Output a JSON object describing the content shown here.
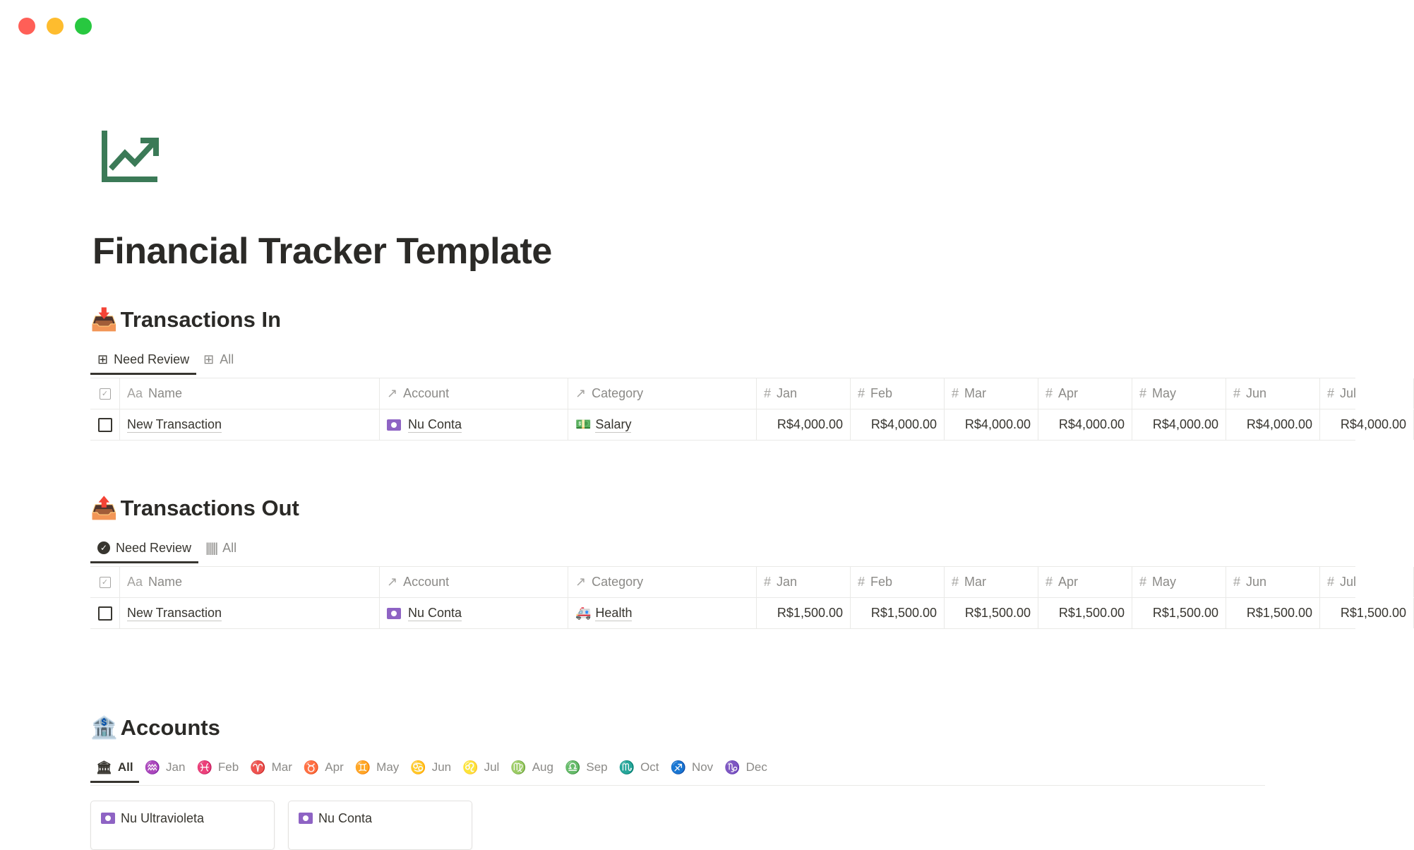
{
  "window": {
    "colors": {
      "close": "#ff5f57",
      "minimize": "#febc2e",
      "maximize": "#28c840"
    }
  },
  "page": {
    "icon": "trending-up-chart-icon",
    "icon_color": "#3b7a57",
    "title": "Financial Tracker Template"
  },
  "columns": {
    "name": "Name",
    "name_prefix": "Aa",
    "account": "Account",
    "category": "Category",
    "months": [
      "Jan",
      "Feb",
      "Mar",
      "Apr",
      "May",
      "Jun",
      "Jul"
    ]
  },
  "transactions_in": {
    "emoji": "📥",
    "title": "Transactions In",
    "tabs": [
      {
        "label": "Need Review",
        "icon": "table-icon"
      },
      {
        "label": "All",
        "icon": "table-icon"
      }
    ],
    "rows": [
      {
        "name": "New Transaction",
        "account": "Nu Conta",
        "category_emoji": "💵",
        "category": "Salary",
        "values": [
          "R$4,000.00",
          "R$4,000.00",
          "R$4,000.00",
          "R$4,000.00",
          "R$4,000.00",
          "R$4,000.00",
          "R$4,000.00"
        ]
      }
    ]
  },
  "transactions_out": {
    "emoji": "📤",
    "title": "Transactions Out",
    "tabs": [
      {
        "label": "Need Review",
        "icon": "check-circle-icon"
      },
      {
        "label": "All",
        "icon": "barcode-icon"
      }
    ],
    "rows": [
      {
        "name": "New Transaction",
        "account": "Nu Conta",
        "category_emoji": "🚑",
        "category": "Health",
        "values": [
          "R$1,500.00",
          "R$1,500.00",
          "R$1,500.00",
          "R$1,500.00",
          "R$1,500.00",
          "R$1,500.00",
          "R$1,500.00"
        ]
      }
    ]
  },
  "accounts": {
    "emoji": "🏦",
    "title": "Accounts",
    "tabs": [
      {
        "glyph": "🏛",
        "label": "All"
      },
      {
        "glyph": "♒",
        "label": "Jan"
      },
      {
        "glyph": "♓",
        "label": "Feb"
      },
      {
        "glyph": "♈",
        "label": "Mar"
      },
      {
        "glyph": "♉",
        "label": "Apr"
      },
      {
        "glyph": "♊",
        "label": "May"
      },
      {
        "glyph": "♋",
        "label": "Jun"
      },
      {
        "glyph": "♌",
        "label": "Jul"
      },
      {
        "glyph": "♍",
        "label": "Aug"
      },
      {
        "glyph": "♎",
        "label": "Sep"
      },
      {
        "glyph": "♏",
        "label": "Oct"
      },
      {
        "glyph": "♐",
        "label": "Nov"
      },
      {
        "glyph": "♑",
        "label": "Dec"
      }
    ],
    "cards": [
      {
        "name": "Nu Ultravioleta"
      },
      {
        "name": "Nu Conta"
      }
    ]
  }
}
